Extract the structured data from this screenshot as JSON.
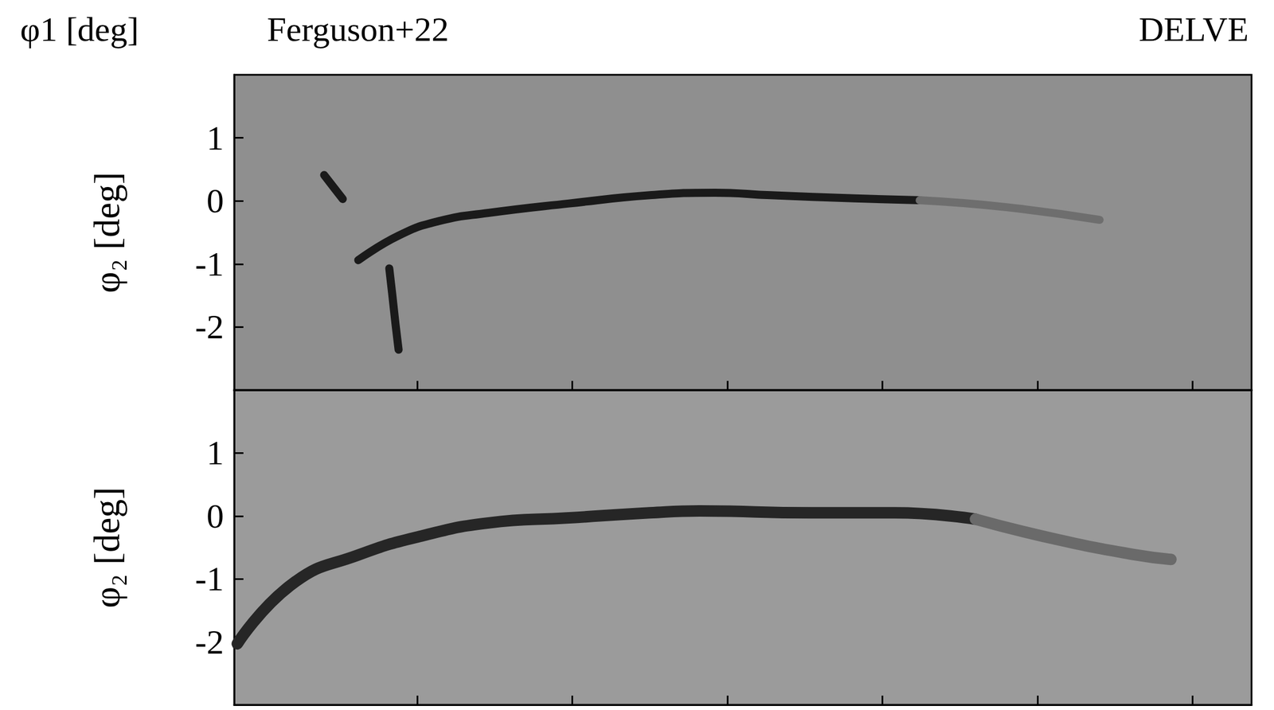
{
  "chart_data": [
    {
      "type": "line",
      "title": "Ferguson+22",
      "annotations": [
        "φ1 [deg]",
        "DELVE"
      ],
      "ylabel": "φ₂ [deg]",
      "xlim": [
        -15.9,
        16.9
      ],
      "xticks": [
        -10,
        -5,
        0,
        5,
        10,
        15
      ],
      "ylim": [
        -3,
        2
      ],
      "yticks": [
        -2,
        -1,
        0,
        1
      ],
      "tick_labels": "y",
      "grid": false,
      "series": [
        {
          "color": "#1a1a1a",
          "x": [
            -11.9,
            -10.6,
            -9.3,
            -7.7,
            -5.1,
            -2.5,
            -0.4,
            1.4,
            4.1,
            6.2
          ],
          "values": [
            -0.94,
            -0.55,
            -0.32,
            -0.19,
            -0.04,
            0.09,
            0.13,
            0.09,
            0.04,
            0.01
          ]
        },
        {
          "color": "#1a1a1a",
          "x": [
            -13.0,
            -12.7,
            -12.4
          ],
          "values": [
            0.41,
            0.22,
            0.03
          ]
        },
        {
          "color": "#1a1a1a",
          "x": [
            -10.9,
            -10.8,
            -10.7,
            -10.6
          ],
          "values": [
            -1.07,
            -1.5,
            -1.95,
            -2.36
          ]
        },
        {
          "color": "#6e6e6e",
          "x": [
            6.2,
            9.0,
            12.0
          ],
          "values": [
            0.01,
            -0.1,
            -0.3
          ]
        }
      ]
    },
    {
      "type": "line",
      "ylabel": "φ₂ [deg]",
      "xlim": [
        -15.9,
        16.9
      ],
      "xticks": [
        -10,
        -5,
        0,
        5,
        10,
        15
      ],
      "ylim": [
        -3,
        2
      ],
      "yticks": [
        -2,
        -1,
        0,
        1
      ],
      "tick_labels": "y",
      "grid": false,
      "series": [
        {
          "color": "#262626",
          "x": [
            -15.8,
            -14.0,
            -11.9,
            -9.8,
            -7.7,
            -5.1,
            -2.5,
            -0.9,
            2.7,
            5.4,
            8.0
          ],
          "values": [
            -2.03,
            -1.07,
            -0.62,
            -0.31,
            -0.11,
            -0.03,
            0.05,
            0.08,
            0.05,
            0.05,
            -0.05
          ]
        },
        {
          "color": "#6a6a6a",
          "x": [
            8.0,
            10.6,
            13.2,
            14.3
          ],
          "values": [
            -0.05,
            -0.37,
            -0.62,
            -0.69
          ]
        }
      ]
    }
  ]
}
